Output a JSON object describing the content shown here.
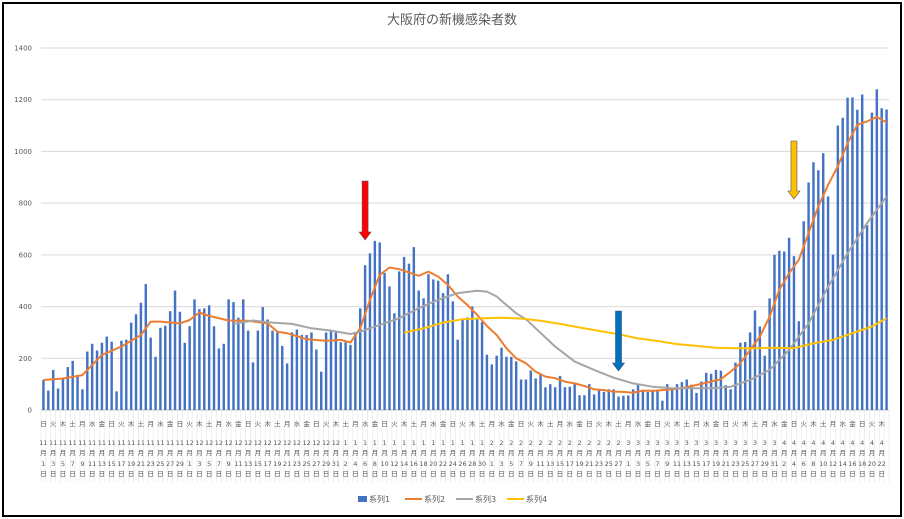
{
  "chart_data": {
    "type": "bar",
    "title": "大阪府の新機感染者数",
    "ylim": [
      0,
      1400
    ],
    "yticks": [
      0,
      200,
      400,
      600,
      800,
      1000,
      1200,
      1400
    ],
    "grid": true,
    "legend_position": "bottom",
    "weekday_cycle": [
      "日",
      "月",
      "火",
      "水",
      "木",
      "金",
      "土"
    ],
    "month_suffix": "月",
    "day_suffix": "日",
    "categories": [
      "11/1",
      "11/2",
      "11/3",
      "11/4",
      "11/5",
      "11/6",
      "11/7",
      "11/8",
      "11/9",
      "11/10",
      "11/11",
      "11/12",
      "11/13",
      "11/14",
      "11/15",
      "11/16",
      "11/17",
      "11/18",
      "11/19",
      "11/20",
      "11/21",
      "11/22",
      "11/23",
      "11/24",
      "11/25",
      "11/26",
      "11/27",
      "11/28",
      "11/29",
      "11/30",
      "12/1",
      "12/2",
      "12/3",
      "12/4",
      "12/5",
      "12/6",
      "12/7",
      "12/8",
      "12/9",
      "12/10",
      "12/11",
      "12/12",
      "12/13",
      "12/14",
      "12/15",
      "12/16",
      "12/17",
      "12/18",
      "12/19",
      "12/20",
      "12/21",
      "12/22",
      "12/23",
      "12/24",
      "12/25",
      "12/26",
      "12/27",
      "12/28",
      "12/29",
      "12/30",
      "12/31",
      "1/1",
      "1/2",
      "1/3",
      "1/4",
      "1/5",
      "1/6",
      "1/7",
      "1/8",
      "1/9",
      "1/10",
      "1/11",
      "1/12",
      "1/13",
      "1/14",
      "1/15",
      "1/16",
      "1/17",
      "1/18",
      "1/19",
      "1/20",
      "1/21",
      "1/22",
      "1/23",
      "1/24",
      "1/25",
      "1/26",
      "1/27",
      "1/28",
      "1/29",
      "1/30",
      "1/31",
      "2/1",
      "2/2",
      "2/3",
      "2/4",
      "2/5",
      "2/6",
      "2/7",
      "2/8",
      "2/9",
      "2/10",
      "2/11",
      "2/12",
      "2/13",
      "2/14",
      "2/15",
      "2/16",
      "2/17",
      "2/18",
      "2/19",
      "2/20",
      "2/21",
      "2/22",
      "2/23",
      "2/24",
      "2/25",
      "2/26",
      "2/27",
      "2/28",
      "3/1",
      "3/2",
      "3/3",
      "3/4",
      "3/5",
      "3/6",
      "3/7",
      "3/8",
      "3/9",
      "3/10",
      "3/11",
      "3/12",
      "3/13",
      "3/14",
      "3/15",
      "3/16",
      "3/17",
      "3/18",
      "3/19",
      "3/20",
      "3/21",
      "3/22",
      "3/23",
      "3/24",
      "3/25",
      "3/26",
      "3/27",
      "3/28",
      "3/29",
      "3/30",
      "3/31",
      "4/1",
      "4/2",
      "4/3",
      "4/4",
      "4/5",
      "4/6",
      "4/7",
      "4/8",
      "4/9",
      "4/10",
      "4/11",
      "4/12",
      "4/13",
      "4/14",
      "4/15",
      "4/16",
      "4/17",
      "4/18",
      "4/19",
      "4/20",
      "4/21",
      "4/22",
      "4/23"
    ],
    "series": [
      {
        "name": "系列1",
        "type": "bar",
        "color": "#4472C4",
        "values": [
          116,
          75,
          155,
          83,
          120,
          166,
          190,
          135,
          80,
          226,
          256,
          230,
          260,
          284,
          264,
          72,
          268,
          272,
          338,
          370,
          415,
          487,
          280,
          206,
          318,
          326,
          382,
          462,
          380,
          260,
          324,
          428,
          390,
          393,
          405,
          324,
          238,
          256,
          428,
          417,
          357,
          428,
          307,
          184,
          307,
          398,
          350,
          307,
          300,
          248,
          180,
          300,
          311,
          290,
          290,
          300,
          234,
          148,
          300,
          307,
          300,
          262,
          262,
          252,
          300,
          393,
          560,
          606,
          654,
          648,
          530,
          478,
          374,
          536,
          592,
          566,
          630,
          462,
          432,
          525,
          505,
          500,
          452,
          525,
          420,
          272,
          350,
          358,
          400,
          350,
          340,
          214,
          176,
          210,
          241,
          206,
          206,
          188,
          118,
          118,
          153,
          122,
          140,
          88,
          100,
          88,
          132,
          88,
          90,
          100,
          57,
          57,
          100,
          60,
          80,
          70,
          80,
          80,
          52,
          55,
          56,
          80,
          98,
          75,
          70,
          78,
          73,
          36,
          100,
          80,
          100,
          108,
          118,
          98,
          66,
          110,
          144,
          140,
          155,
          152,
          96,
          80,
          183,
          260,
          263,
          300,
          385,
          323,
          210,
          432,
          600,
          616,
          613,
          666,
          595,
          343,
          730,
          880,
          958,
          927,
          993,
          826,
          601,
          1100,
          1130,
          1208,
          1209,
          1161,
          1220,
          715,
          1150,
          1240,
          1167,
          1162
        ]
      },
      {
        "name": "系列2",
        "type": "line",
        "color": "#ED7D31",
        "points": [
          [
            "11/1",
            116
          ],
          [
            "11/5",
            122
          ],
          [
            "11/9",
            135
          ],
          [
            "11/13",
            213
          ],
          [
            "11/17",
            245
          ],
          [
            "11/21",
            290
          ],
          [
            "11/23",
            342
          ],
          [
            "11/25",
            342
          ],
          [
            "11/29",
            335
          ],
          [
            "12/1",
            348
          ],
          [
            "12/3",
            377
          ],
          [
            "12/5",
            364
          ],
          [
            "12/9",
            346
          ],
          [
            "12/13",
            345
          ],
          [
            "12/17",
            335
          ],
          [
            "12/19",
            303
          ],
          [
            "12/21",
            297
          ],
          [
            "12/25",
            274
          ],
          [
            "12/29",
            268
          ],
          [
            "1/1",
            271
          ],
          [
            "1/3",
            261
          ],
          [
            "1/5",
            316
          ],
          [
            "1/7",
            426
          ],
          [
            "1/9",
            522
          ],
          [
            "1/11",
            551
          ],
          [
            "1/13",
            545
          ],
          [
            "1/15",
            532
          ],
          [
            "1/17",
            519
          ],
          [
            "1/19",
            535
          ],
          [
            "1/21",
            516
          ],
          [
            "1/23",
            484
          ],
          [
            "1/25",
            439
          ],
          [
            "1/27",
            406
          ],
          [
            "1/29",
            368
          ],
          [
            "1/31",
            325
          ],
          [
            "2/2",
            290
          ],
          [
            "2/4",
            239
          ],
          [
            "2/6",
            200
          ],
          [
            "2/8",
            181
          ],
          [
            "2/10",
            148
          ],
          [
            "2/12",
            129
          ],
          [
            "2/14",
            123
          ],
          [
            "2/16",
            110
          ],
          [
            "2/18",
            103
          ],
          [
            "2/20",
            93
          ],
          [
            "2/22",
            80
          ],
          [
            "2/24",
            77
          ],
          [
            "2/26",
            71
          ],
          [
            "2/28",
            70
          ],
          [
            "3/2",
            67
          ],
          [
            "3/4",
            75
          ],
          [
            "3/6",
            74
          ],
          [
            "3/8",
            77
          ],
          [
            "3/10",
            80
          ],
          [
            "3/12",
            84
          ],
          [
            "3/14",
            93
          ],
          [
            "3/16",
            101
          ],
          [
            "3/18",
            110
          ],
          [
            "3/20",
            119
          ],
          [
            "3/22",
            148
          ],
          [
            "3/24",
            181
          ],
          [
            "3/26",
            232
          ],
          [
            "3/28",
            284
          ],
          [
            "3/30",
            361
          ],
          [
            "4/1",
            465
          ],
          [
            "4/3",
            529
          ],
          [
            "4/5",
            581
          ],
          [
            "4/7",
            684
          ],
          [
            "4/9",
            787
          ],
          [
            "4/11",
            871
          ],
          [
            "4/13",
            942
          ],
          [
            "4/15",
            1032
          ],
          [
            "4/17",
            1103
          ],
          [
            "4/19",
            1116
          ],
          [
            "4/21",
            1133
          ],
          [
            "4/23",
            1112
          ]
        ]
      },
      {
        "name": "系列3",
        "type": "line",
        "color": "#A5A5A5",
        "points": [
          [
            "12/10",
            333
          ],
          [
            "12/14",
            346
          ],
          [
            "12/18",
            338
          ],
          [
            "12/22",
            333
          ],
          [
            "12/26",
            316
          ],
          [
            "12/30",
            307
          ],
          [
            "1/3",
            294
          ],
          [
            "1/5",
            303
          ],
          [
            "1/9",
            329
          ],
          [
            "1/13",
            355
          ],
          [
            "1/17",
            394
          ],
          [
            "1/21",
            426
          ],
          [
            "1/25",
            452
          ],
          [
            "1/29",
            461
          ],
          [
            "1/31",
            458
          ],
          [
            "2/2",
            439
          ],
          [
            "2/4",
            406
          ],
          [
            "2/6",
            374
          ],
          [
            "2/8",
            351
          ],
          [
            "2/10",
            316
          ],
          [
            "2/14",
            245
          ],
          [
            "2/18",
            187
          ],
          [
            "2/22",
            155
          ],
          [
            "2/26",
            125
          ],
          [
            "3/2",
            103
          ],
          [
            "3/6",
            90
          ],
          [
            "3/10",
            84
          ],
          [
            "3/14",
            84
          ],
          [
            "3/18",
            84
          ],
          [
            "3/22",
            90
          ],
          [
            "3/26",
            116
          ],
          [
            "3/30",
            155
          ],
          [
            "4/3",
            232
          ],
          [
            "4/7",
            335
          ],
          [
            "4/11",
            477
          ],
          [
            "4/15",
            606
          ],
          [
            "4/19",
            723
          ],
          [
            "4/23",
            826
          ]
        ]
      },
      {
        "name": "系列4",
        "type": "line",
        "color": "#FFC000",
        "points": [
          [
            "1/14",
            299
          ],
          [
            "1/18",
            316
          ],
          [
            "1/22",
            338
          ],
          [
            "1/26",
            351
          ],
          [
            "1/30",
            355
          ],
          [
            "2/3",
            357
          ],
          [
            "2/7",
            354
          ],
          [
            "2/11",
            345
          ],
          [
            "2/15",
            333
          ],
          [
            "2/19",
            319
          ],
          [
            "2/23",
            306
          ],
          [
            "2/27",
            293
          ],
          [
            "3/3",
            277
          ],
          [
            "3/7",
            267
          ],
          [
            "3/11",
            255
          ],
          [
            "3/15",
            248
          ],
          [
            "3/19",
            241
          ],
          [
            "3/23",
            239
          ],
          [
            "3/27",
            239
          ],
          [
            "3/31",
            241
          ],
          [
            "4/4",
            239
          ],
          [
            "4/8",
            258
          ],
          [
            "4/12",
            271
          ],
          [
            "4/16",
            297
          ],
          [
            "4/20",
            323
          ],
          [
            "4/23",
            355
          ]
        ]
      }
    ],
    "annotations": [
      {
        "type": "arrow-down",
        "date": "1/6",
        "color": "#FF0000"
      },
      {
        "type": "arrow-down",
        "date": "2/27",
        "color": "#0070C0"
      },
      {
        "type": "arrow-down",
        "date": "4/4",
        "color": "#FFC000"
      }
    ]
  }
}
